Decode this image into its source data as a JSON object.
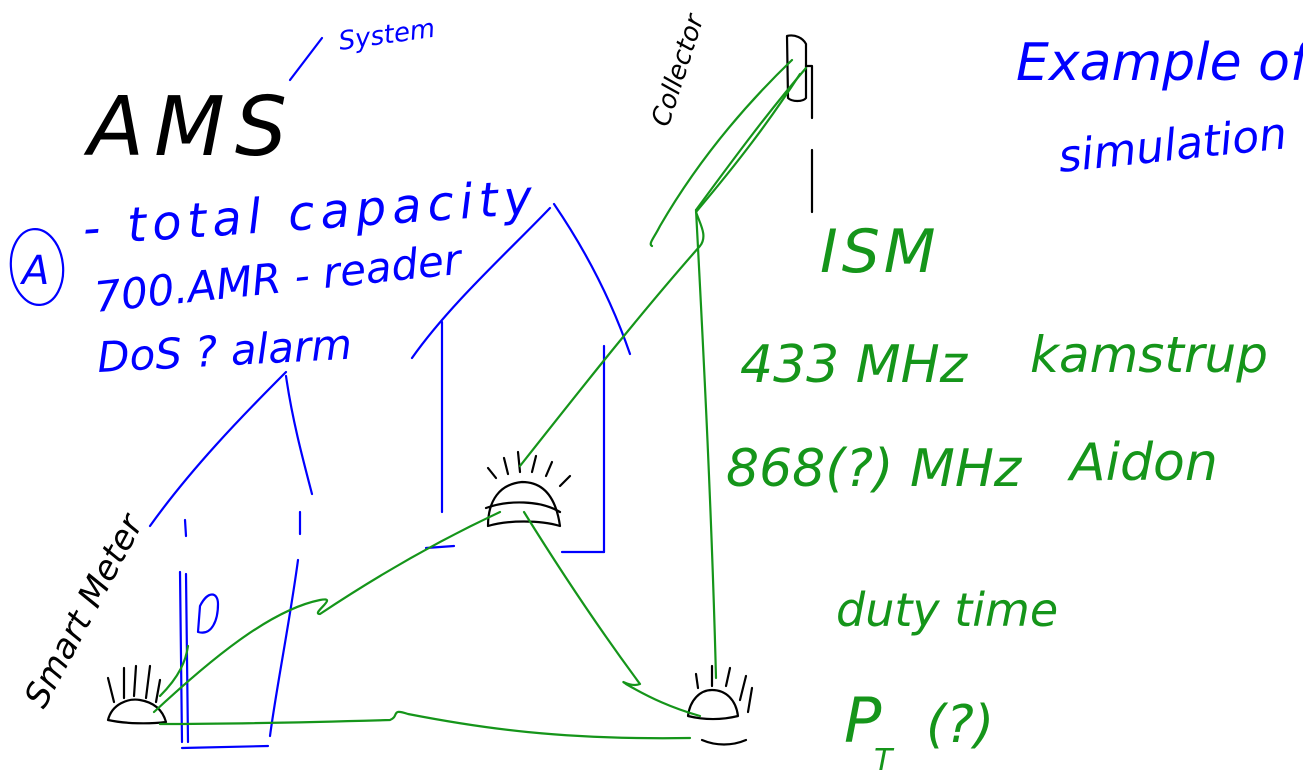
{
  "colors": {
    "black_ink": "#000000",
    "blue_ink": "#0000ff",
    "green_ink": "#15951a",
    "background": "#ffffff"
  },
  "notes": {
    "ams": "AMS",
    "system": "System",
    "collector": "Collector",
    "example_of": "Example of",
    "simulation": "simulation",
    "circle_a": "A",
    "total_capacity": "- total capacity",
    "amr_reader": "700.AMR - reader",
    "dos_alarm": "DoS ? alarm",
    "ism": "ISM",
    "freq_433": "433 MHz",
    "kamstrup": "kamstrup",
    "freq_868": "868(?) MHz",
    "aidon": "Aidon",
    "duty_time": "duty time",
    "pt": "P",
    "pt_sub": "T",
    "pt_q": "(?)",
    "smart_meter": "Smart Meter"
  },
  "icons": [
    "house-left-outline",
    "house-middle-outline",
    "collector-antenna",
    "smart-meter-left",
    "smart-meter-middle",
    "smart-meter-right",
    "radio-link"
  ]
}
